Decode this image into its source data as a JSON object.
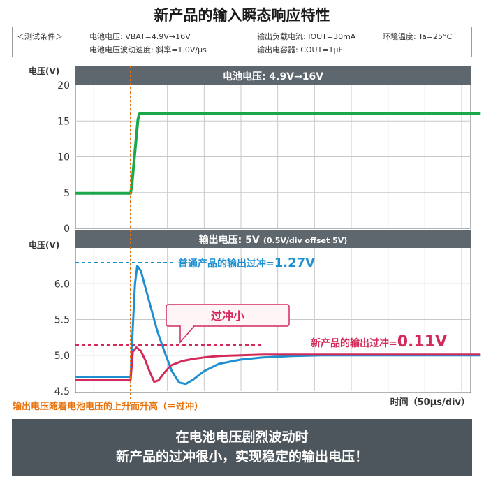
{
  "title": "新产品的输入瞬态响应特性",
  "conditions": {
    "label": "＜测试条件＞",
    "vbat": "电池电压: VBAT=4.9V→16V",
    "ripple": "电池电压波动速度: 斜率=1.0V/µs",
    "iout": "输出负载电流: IOUT=30mA",
    "temp": "环境温度: Ta=25°C",
    "cout": "输出电容器: COUT=1µF"
  },
  "chart_data": [
    {
      "type": "line",
      "title": "电池电压: 4.9V→16V",
      "ylabel": "电压(V)",
      "ylim": [
        0,
        20
      ],
      "yticks": [
        "0",
        "5",
        "10",
        "15",
        "20"
      ],
      "x_unit": "µs",
      "xlim": [
        -75,
        475
      ],
      "grid": true,
      "series": [
        {
          "name": "battery",
          "color": "#1aa84a",
          "x": [
            -75,
            0,
            2,
            4,
            6,
            8,
            10,
            12,
            475
          ],
          "y": [
            4.9,
            4.9,
            6.3,
            8.6,
            10.8,
            13.0,
            15.2,
            16.0,
            16.0
          ]
        }
      ]
    },
    {
      "type": "line",
      "title": "输出电压: 5V",
      "title_note": "(0.5V/div offset 5V)",
      "ylabel": "电压(V)",
      "ylim": [
        4.5,
        6.5
      ],
      "yticks": [
        "4.5",
        "5.0",
        "5.5",
        "6.0"
      ],
      "x_unit": "µs",
      "xlim": [
        -75,
        475
      ],
      "grid": true,
      "series": [
        {
          "name": "普通产品的输出过冲",
          "color": "#1e90d0",
          "x": [
            -75,
            0,
            3,
            6,
            9,
            14,
            20,
            28,
            36,
            46,
            56,
            66,
            75,
            85,
            100,
            120,
            150,
            180,
            220,
            260,
            300,
            350,
            400,
            475
          ],
          "y": [
            4.7,
            4.7,
            5.4,
            6.0,
            6.25,
            6.18,
            5.95,
            5.65,
            5.35,
            5.05,
            4.78,
            4.62,
            4.6,
            4.66,
            4.78,
            4.88,
            4.94,
            4.97,
            4.99,
            5.0,
            5.0,
            5.0,
            5.0,
            5.0
          ]
        },
        {
          "name": "新产品的输出过冲",
          "color": "#d42a5a",
          "x": [
            -75,
            0,
            3,
            8,
            14,
            20,
            26,
            32,
            38,
            46,
            55,
            70,
            85,
            100,
            120,
            150,
            180,
            220,
            260,
            300,
            475
          ],
          "y": [
            4.66,
            4.66,
            5.05,
            5.11,
            5.06,
            4.93,
            4.77,
            4.63,
            4.65,
            4.76,
            4.86,
            4.92,
            4.95,
            4.97,
            4.99,
            5.0,
            5.01,
            5.01,
            5.01,
            5.01,
            5.01
          ]
        }
      ]
    }
  ],
  "annotations": {
    "conventional": "普通产品的输出过冲=",
    "conventional_value": "1.27V",
    "new": "新产品的输出过冲=",
    "new_value": "0.11V",
    "small_overshoot": "过冲小",
    "rise_note": "输出电压随着电池电压的上升而升高（＝过冲）",
    "time_axis": "时间（50µs/div）"
  },
  "colors": {
    "panel_bg": "#5e676d",
    "green": "#1aa84a",
    "blue": "#1e90d0",
    "red": "#d42a5a",
    "orange": "#e8720c"
  },
  "bottom": {
    "line1": "在电池电压剧烈波动时",
    "line2": "新产品的过冲很小，实现稳定的输出电压！"
  }
}
